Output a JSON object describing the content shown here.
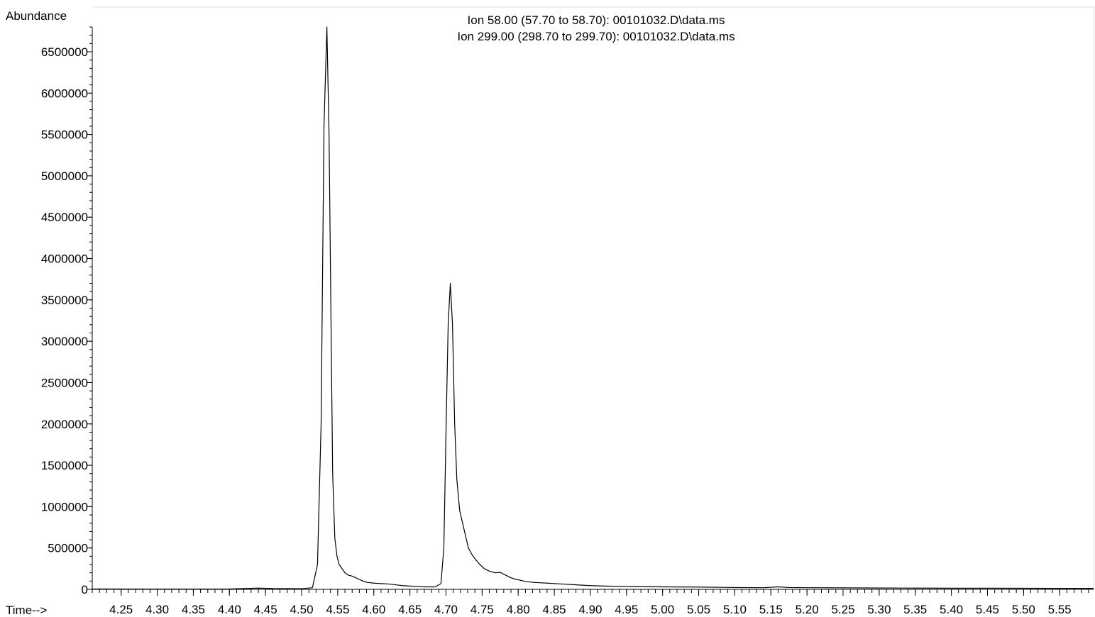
{
  "chart_data": {
    "type": "line",
    "title_lines": [
      "Ion  58.00 (57.70 to 58.70): 00101032.D\\data.ms",
      "Ion 299.00 (298.70 to 299.70): 00101032.D\\data.ms"
    ],
    "ylabel": "Abundance",
    "xlabel": "Time-->",
    "xlim": [
      4.21,
      5.597
    ],
    "ylim": [
      0,
      6800000
    ],
    "x_ticks": [
      4.25,
      4.3,
      4.35,
      4.4,
      4.45,
      4.5,
      4.55,
      4.6,
      4.65,
      4.7,
      4.75,
      4.8,
      4.85,
      4.9,
      4.95,
      5.0,
      5.05,
      5.1,
      5.15,
      5.2,
      5.25,
      5.3,
      5.35,
      5.4,
      5.45,
      5.5,
      5.55
    ],
    "x_tick_labels": [
      "4.25",
      "4.30",
      "4.35",
      "4.40",
      "4.45",
      "4.50",
      "4.55",
      "4.60",
      "4.65",
      "4.70",
      "4.75",
      "4.80",
      "4.85",
      "4.90",
      "4.95",
      "5.00",
      "5.05",
      "5.10",
      "5.15",
      "5.20",
      "5.25",
      "5.30",
      "5.35",
      "5.40",
      "5.45",
      "5.50",
      "5.55"
    ],
    "y_ticks": [
      0,
      500000,
      1000000,
      1500000,
      2000000,
      2500000,
      3000000,
      3500000,
      4000000,
      4500000,
      5000000,
      5500000,
      6000000,
      6500000
    ],
    "y_tick_labels": [
      "0",
      "500000",
      "1000000",
      "1500000",
      "2000000",
      "2500000",
      "3000000",
      "3500000",
      "4000000",
      "4500000",
      "5000000",
      "5500000",
      "6000000",
      "6500000"
    ],
    "grid": false,
    "line_color": "#000000",
    "series": [
      {
        "x": [
          4.21,
          4.3,
          4.4,
          4.44,
          4.46,
          4.5,
          4.515,
          4.522,
          4.527,
          4.531,
          4.535,
          4.538,
          4.541,
          4.543,
          4.546,
          4.549,
          4.552,
          4.556,
          4.56,
          4.565,
          4.57,
          4.575,
          4.58,
          4.585,
          4.59,
          4.6,
          4.61,
          4.62,
          4.63,
          4.64,
          4.65,
          4.66,
          4.67,
          4.685,
          4.693,
          4.697,
          4.7,
          4.703,
          4.706,
          4.709,
          4.712,
          4.715,
          4.719,
          4.723,
          4.727,
          4.731,
          4.736,
          4.741,
          4.747,
          4.753,
          4.76,
          4.768,
          4.775,
          4.783,
          4.79,
          4.797,
          4.803,
          4.81,
          4.82,
          4.83,
          4.84,
          4.86,
          4.88,
          4.9,
          4.92,
          4.95,
          5.0,
          5.05,
          5.1,
          5.14,
          5.16,
          5.175,
          5.2,
          5.25,
          5.3,
          5.35,
          5.4,
          5.45,
          5.5,
          5.55,
          5.597
        ],
        "y": [
          5000,
          3000,
          5000,
          15000,
          10000,
          8000,
          20000,
          300000,
          2000000,
          5600000,
          6800000,
          5500000,
          3000000,
          1400000,
          620000,
          400000,
          300000,
          250000,
          200000,
          170000,
          160000,
          140000,
          120000,
          100000,
          85000,
          75000,
          70000,
          65000,
          55000,
          45000,
          40000,
          35000,
          30000,
          30000,
          70000,
          500000,
          1900000,
          3200000,
          3700000,
          3200000,
          2000000,
          1330000,
          950000,
          800000,
          650000,
          500000,
          420000,
          360000,
          300000,
          250000,
          220000,
          200000,
          205000,
          170000,
          140000,
          120000,
          110000,
          95000,
          85000,
          80000,
          75000,
          65000,
          55000,
          45000,
          40000,
          35000,
          30000,
          28000,
          22000,
          20000,
          30000,
          22000,
          20000,
          18000,
          16000,
          15000,
          14000,
          14000,
          13000,
          12000,
          12000
        ]
      }
    ]
  }
}
